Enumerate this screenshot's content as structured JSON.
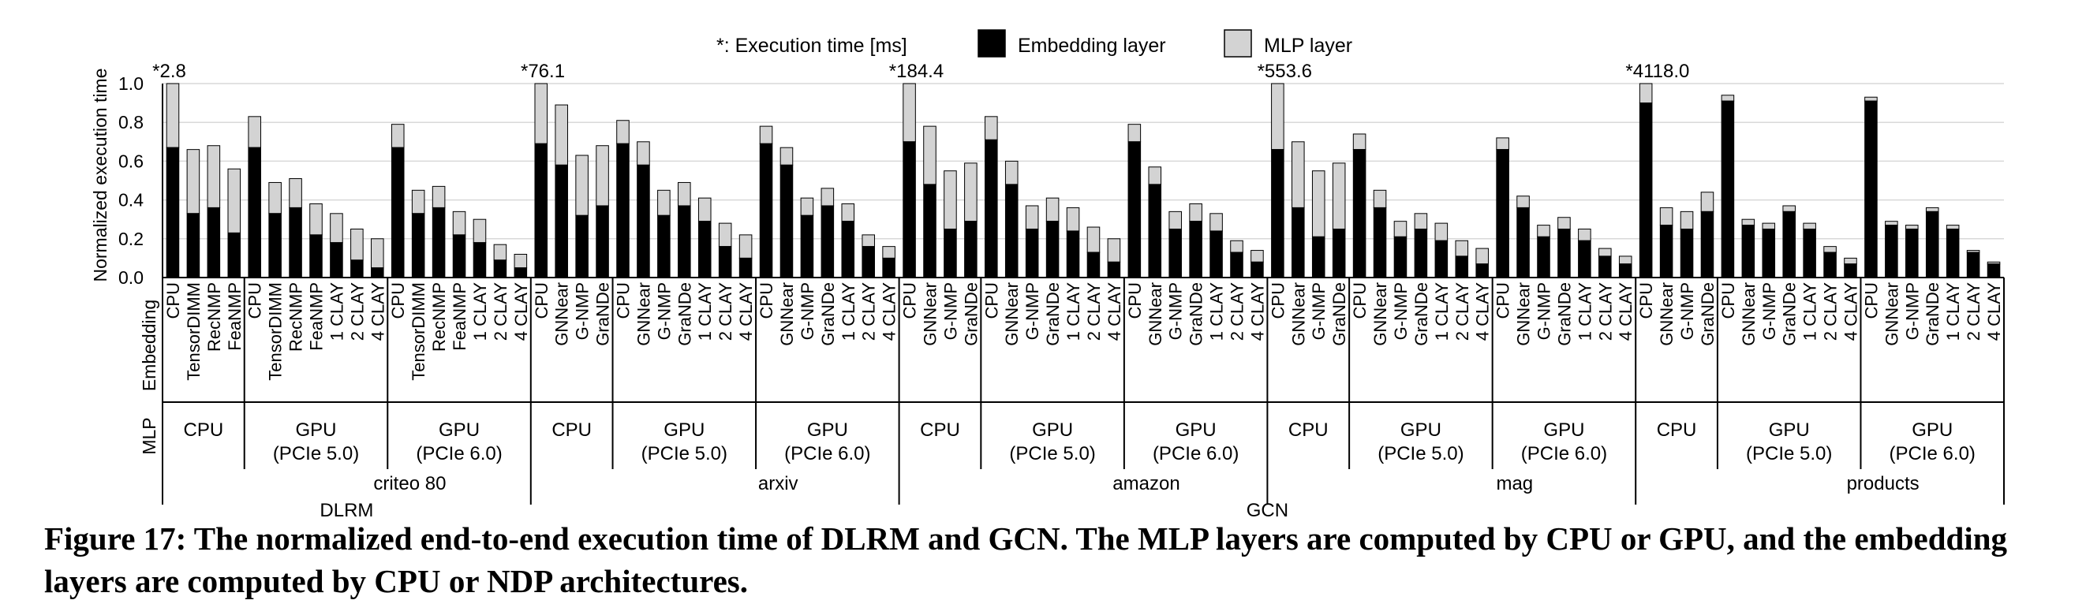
{
  "caption": "Figure 17: The normalized end-to-end execution time of DLRM and GCN. The MLP layers are computed by CPU or GPU, and the embedding layers are computed by CPU or NDP architectures.",
  "chart_data": {
    "type": "bar",
    "stacked": true,
    "ylabel": "Normalized execution time",
    "ylim": [
      0,
      1.0
    ],
    "yticks": [
      "0.0",
      "0.2",
      "0.4",
      "0.6",
      "0.8",
      "1.0"
    ],
    "grid": true,
    "legend_position": "top",
    "legend": {
      "note": "*: Execution time [ms]",
      "items": [
        {
          "name": "Embedding layer",
          "color": "#000000"
        },
        {
          "name": "MLP layer",
          "color": "#d3d3d3"
        }
      ]
    },
    "row_labels": {
      "embedding": "Embedding",
      "mlp": "MLP"
    },
    "models": [
      {
        "name": "DLRM",
        "datasets": [
          0
        ]
      },
      {
        "name": "GCN",
        "datasets": [
          1,
          2,
          3,
          4
        ]
      }
    ],
    "datasets": [
      {
        "name": "criteo 80",
        "cpu_time": "*2.8",
        "groups": [
          {
            "mlp": [
              "CPU"
            ],
            "bars": [
              {
                "label": "CPU",
                "embedding": 0.67,
                "mlp": 0.33
              },
              {
                "label": "TensorDIMM",
                "embedding": 0.33,
                "mlp": 0.33
              },
              {
                "label": "RecNMP",
                "embedding": 0.36,
                "mlp": 0.32
              },
              {
                "label": "FeaNMP",
                "embedding": 0.23,
                "mlp": 0.33
              }
            ]
          },
          {
            "mlp": [
              "GPU",
              "(PCIe 5.0)"
            ],
            "bars": [
              {
                "label": "CPU",
                "embedding": 0.67,
                "mlp": 0.16
              },
              {
                "label": "TensorDIMM",
                "embedding": 0.33,
                "mlp": 0.16
              },
              {
                "label": "RecNMP",
                "embedding": 0.36,
                "mlp": 0.15
              },
              {
                "label": "FeaNMP",
                "embedding": 0.22,
                "mlp": 0.16
              },
              {
                "label": "1 CLAY",
                "embedding": 0.18,
                "mlp": 0.15
              },
              {
                "label": "2 CLAY",
                "embedding": 0.09,
                "mlp": 0.16
              },
              {
                "label": "4 CLAY",
                "embedding": 0.05,
                "mlp": 0.15
              }
            ]
          },
          {
            "mlp": [
              "GPU",
              "(PCIe 6.0)"
            ],
            "bars": [
              {
                "label": "CPU",
                "embedding": 0.67,
                "mlp": 0.12
              },
              {
                "label": "TensorDIMM",
                "embedding": 0.33,
                "mlp": 0.12
              },
              {
                "label": "RecNMP",
                "embedding": 0.36,
                "mlp": 0.11
              },
              {
                "label": "FeaNMP",
                "embedding": 0.22,
                "mlp": 0.12
              },
              {
                "label": "1 CLAY",
                "embedding": 0.18,
                "mlp": 0.12
              },
              {
                "label": "2 CLAY",
                "embedding": 0.09,
                "mlp": 0.08
              },
              {
                "label": "4 CLAY",
                "embedding": 0.05,
                "mlp": 0.07
              }
            ]
          }
        ]
      },
      {
        "name": "arxiv",
        "cpu_time": "*76.1",
        "groups": [
          {
            "mlp": [
              "CPU"
            ],
            "bars": [
              {
                "label": "CPU",
                "embedding": 0.69,
                "mlp": 0.31
              },
              {
                "label": "GNNear",
                "embedding": 0.58,
                "mlp": 0.31
              },
              {
                "label": "G-NMP",
                "embedding": 0.32,
                "mlp": 0.31
              },
              {
                "label": "GraNDe",
                "embedding": 0.37,
                "mlp": 0.31
              }
            ]
          },
          {
            "mlp": [
              "GPU",
              "(PCIe 5.0)"
            ],
            "bars": [
              {
                "label": "CPU",
                "embedding": 0.69,
                "mlp": 0.12
              },
              {
                "label": "GNNear",
                "embedding": 0.58,
                "mlp": 0.12
              },
              {
                "label": "G-NMP",
                "embedding": 0.32,
                "mlp": 0.13
              },
              {
                "label": "GraNDe",
                "embedding": 0.37,
                "mlp": 0.12
              },
              {
                "label": "1 CLAY",
                "embedding": 0.29,
                "mlp": 0.12
              },
              {
                "label": "2 CLAY",
                "embedding": 0.16,
                "mlp": 0.12
              },
              {
                "label": "4 CLAY",
                "embedding": 0.1,
                "mlp": 0.12
              }
            ]
          },
          {
            "mlp": [
              "GPU",
              "(PCIe 6.0)"
            ],
            "bars": [
              {
                "label": "CPU",
                "embedding": 0.69,
                "mlp": 0.09
              },
              {
                "label": "GNNear",
                "embedding": 0.58,
                "mlp": 0.09
              },
              {
                "label": "G-NMP",
                "embedding": 0.32,
                "mlp": 0.09
              },
              {
                "label": "GraNDe",
                "embedding": 0.37,
                "mlp": 0.09
              },
              {
                "label": "1 CLAY",
                "embedding": 0.29,
                "mlp": 0.09
              },
              {
                "label": "2 CLAY",
                "embedding": 0.16,
                "mlp": 0.06
              },
              {
                "label": "4 CLAY",
                "embedding": 0.1,
                "mlp": 0.06
              }
            ]
          }
        ]
      },
      {
        "name": "amazon",
        "cpu_time": "*184.4",
        "groups": [
          {
            "mlp": [
              "CPU"
            ],
            "bars": [
              {
                "label": "CPU",
                "embedding": 0.7,
                "mlp": 0.3
              },
              {
                "label": "GNNear",
                "embedding": 0.48,
                "mlp": 0.3
              },
              {
                "label": "G-NMP",
                "embedding": 0.25,
                "mlp": 0.3
              },
              {
                "label": "GraNDe",
                "embedding": 0.29,
                "mlp": 0.3
              }
            ]
          },
          {
            "mlp": [
              "GPU",
              "(PCIe 5.0)"
            ],
            "bars": [
              {
                "label": "CPU",
                "embedding": 0.71,
                "mlp": 0.12
              },
              {
                "label": "GNNear",
                "embedding": 0.48,
                "mlp": 0.12
              },
              {
                "label": "G-NMP",
                "embedding": 0.25,
                "mlp": 0.12
              },
              {
                "label": "GraNDe",
                "embedding": 0.29,
                "mlp": 0.12
              },
              {
                "label": "1 CLAY",
                "embedding": 0.24,
                "mlp": 0.12
              },
              {
                "label": "2 CLAY",
                "embedding": 0.13,
                "mlp": 0.13
              },
              {
                "label": "4 CLAY",
                "embedding": 0.08,
                "mlp": 0.12
              }
            ]
          },
          {
            "mlp": [
              "GPU",
              "(PCIe 6.0)"
            ],
            "bars": [
              {
                "label": "CPU",
                "embedding": 0.7,
                "mlp": 0.09
              },
              {
                "label": "GNNear",
                "embedding": 0.48,
                "mlp": 0.09
              },
              {
                "label": "G-NMP",
                "embedding": 0.25,
                "mlp": 0.09
              },
              {
                "label": "GraNDe",
                "embedding": 0.29,
                "mlp": 0.09
              },
              {
                "label": "1 CLAY",
                "embedding": 0.24,
                "mlp": 0.09
              },
              {
                "label": "2 CLAY",
                "embedding": 0.13,
                "mlp": 0.06
              },
              {
                "label": "4 CLAY",
                "embedding": 0.08,
                "mlp": 0.06
              }
            ]
          }
        ]
      },
      {
        "name": "mag",
        "cpu_time": "*553.6",
        "groups": [
          {
            "mlp": [
              "CPU"
            ],
            "bars": [
              {
                "label": "CPU",
                "embedding": 0.66,
                "mlp": 0.34
              },
              {
                "label": "GNNear",
                "embedding": 0.36,
                "mlp": 0.34
              },
              {
                "label": "G-NMP",
                "embedding": 0.21,
                "mlp": 0.34
              },
              {
                "label": "GraNDe",
                "embedding": 0.25,
                "mlp": 0.34
              }
            ]
          },
          {
            "mlp": [
              "GPU",
              "(PCIe 5.0)"
            ],
            "bars": [
              {
                "label": "CPU",
                "embedding": 0.66,
                "mlp": 0.08
              },
              {
                "label": "GNNear",
                "embedding": 0.36,
                "mlp": 0.09
              },
              {
                "label": "G-NMP",
                "embedding": 0.21,
                "mlp": 0.08
              },
              {
                "label": "GraNDe",
                "embedding": 0.25,
                "mlp": 0.08
              },
              {
                "label": "1 CLAY",
                "embedding": 0.19,
                "mlp": 0.09
              },
              {
                "label": "2 CLAY",
                "embedding": 0.11,
                "mlp": 0.08
              },
              {
                "label": "4 CLAY",
                "embedding": 0.07,
                "mlp": 0.08
              }
            ]
          },
          {
            "mlp": [
              "GPU",
              "(PCIe 6.0)"
            ],
            "bars": [
              {
                "label": "CPU",
                "embedding": 0.66,
                "mlp": 0.06
              },
              {
                "label": "GNNear",
                "embedding": 0.36,
                "mlp": 0.06
              },
              {
                "label": "G-NMP",
                "embedding": 0.21,
                "mlp": 0.06
              },
              {
                "label": "GraNDe",
                "embedding": 0.25,
                "mlp": 0.06
              },
              {
                "label": "1 CLAY",
                "embedding": 0.19,
                "mlp": 0.06
              },
              {
                "label": "2 CLAY",
                "embedding": 0.11,
                "mlp": 0.04
              },
              {
                "label": "4 CLAY",
                "embedding": 0.07,
                "mlp": 0.04
              }
            ]
          }
        ]
      },
      {
        "name": "products",
        "cpu_time": "*4118.0",
        "groups": [
          {
            "mlp": [
              "CPU"
            ],
            "bars": [
              {
                "label": "CPU",
                "embedding": 0.9,
                "mlp": 0.1
              },
              {
                "label": "GNNear",
                "embedding": 0.27,
                "mlp": 0.09
              },
              {
                "label": "G-NMP",
                "embedding": 0.25,
                "mlp": 0.09
              },
              {
                "label": "GraNDe",
                "embedding": 0.34,
                "mlp": 0.1
              }
            ]
          },
          {
            "mlp": [
              "GPU",
              "(PCIe 5.0)"
            ],
            "bars": [
              {
                "label": "CPU",
                "embedding": 0.91,
                "mlp": 0.03
              },
              {
                "label": "GNNear",
                "embedding": 0.27,
                "mlp": 0.03
              },
              {
                "label": "G-NMP",
                "embedding": 0.25,
                "mlp": 0.03
              },
              {
                "label": "GraNDe",
                "embedding": 0.34,
                "mlp": 0.03
              },
              {
                "label": "1 CLAY",
                "embedding": 0.25,
                "mlp": 0.03
              },
              {
                "label": "2 CLAY",
                "embedding": 0.13,
                "mlp": 0.03
              },
              {
                "label": "4 CLAY",
                "embedding": 0.07,
                "mlp": 0.03
              }
            ]
          },
          {
            "mlp": [
              "GPU",
              "(PCIe 6.0)"
            ],
            "bars": [
              {
                "label": "CPU",
                "embedding": 0.91,
                "mlp": 0.02
              },
              {
                "label": "GNNear",
                "embedding": 0.27,
                "mlp": 0.02
              },
              {
                "label": "G-NMP",
                "embedding": 0.25,
                "mlp": 0.02
              },
              {
                "label": "GraNDe",
                "embedding": 0.34,
                "mlp": 0.02
              },
              {
                "label": "1 CLAY",
                "embedding": 0.25,
                "mlp": 0.02
              },
              {
                "label": "2 CLAY",
                "embedding": 0.13,
                "mlp": 0.01
              },
              {
                "label": "4 CLAY",
                "embedding": 0.07,
                "mlp": 0.01
              }
            ]
          }
        ]
      }
    ]
  }
}
